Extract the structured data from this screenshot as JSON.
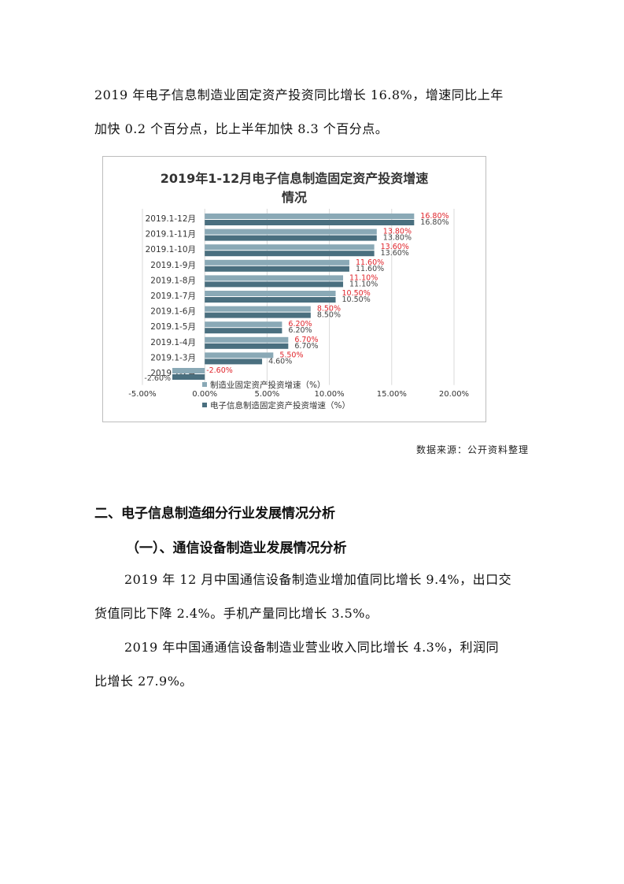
{
  "intro": {
    "line1": "2019 年电子信息制造业固定资产投资同比增长 16.8%，增速同比上年",
    "line2": "加快 0.2 个百分点，比上半年加快 8.3 个百分点。"
  },
  "chart_data": {
    "type": "bar",
    "orientation": "horizontal",
    "title_line1": "2019年1-12月电子信息制造固定资产投资增速",
    "title_line2": "情况",
    "categories": [
      "2019.1-12月",
      "2019.1-11月",
      "2019.1-10月",
      "2019.1-9月",
      "2019.1-8月",
      "2019.1-7月",
      "2019.1-6月",
      "2019.1-5月",
      "2019.1-4月",
      "2019.1-3月",
      "2019.1-2月"
    ],
    "series": [
      {
        "name": "制造业固定资产投资增速（%）",
        "color": "#8aa9b6",
        "values": [
          16.8,
          13.8,
          13.6,
          11.6,
          11.1,
          10.5,
          8.5,
          6.2,
          6.7,
          5.5,
          -2.6
        ],
        "labels": [
          "16.80%",
          "13.80%",
          "13.60%",
          "11.60%",
          "11.10%",
          "10.50%",
          "8.50%",
          "6.20%",
          "6.70%",
          "5.50%",
          "-2.60%"
        ]
      },
      {
        "name": "电子信息制造固定资产投资增速（%）",
        "color": "#4a6f7f",
        "values": [
          16.8,
          13.8,
          13.6,
          11.6,
          11.1,
          10.5,
          8.5,
          6.2,
          6.7,
          4.6,
          -2.6
        ],
        "labels": [
          "16.80%",
          "13.80%",
          "13.60%",
          "11.60%",
          "11.10%",
          "10.50%",
          "8.50%",
          "6.20%",
          "6.70%",
          "4.60%",
          "-2.60%"
        ]
      }
    ],
    "xlim": [
      -5,
      20
    ],
    "xticks": [
      "-5.00%",
      "0.00%",
      "5.00%",
      "10.00%",
      "15.00%",
      "20.00%"
    ],
    "xtick_values": [
      -5,
      0,
      5,
      10,
      15,
      20
    ],
    "grid": true,
    "legend_position": "bottom",
    "label_color_series1": "#e0242b",
    "label_color_series2": "#444444"
  },
  "source": "数据来源：公开资料整理",
  "section2": {
    "heading": "二、电子信息制造细分行业发展情况分析"
  },
  "section2_1": {
    "heading": "（一）、通信设备制造业发展情况分析",
    "p1_line1": "2019 年 12 月中国通信设备制造业增加值同比增长 9.4%，出口交",
    "p1_line2": "货值同比下降 2.4%。手机产量同比增长 3.5%。",
    "p2_line1": "2019 年中国通通信设备制造业营业收入同比增长 4.3%，利润同",
    "p2_line2": "比增长 27.9%。"
  }
}
